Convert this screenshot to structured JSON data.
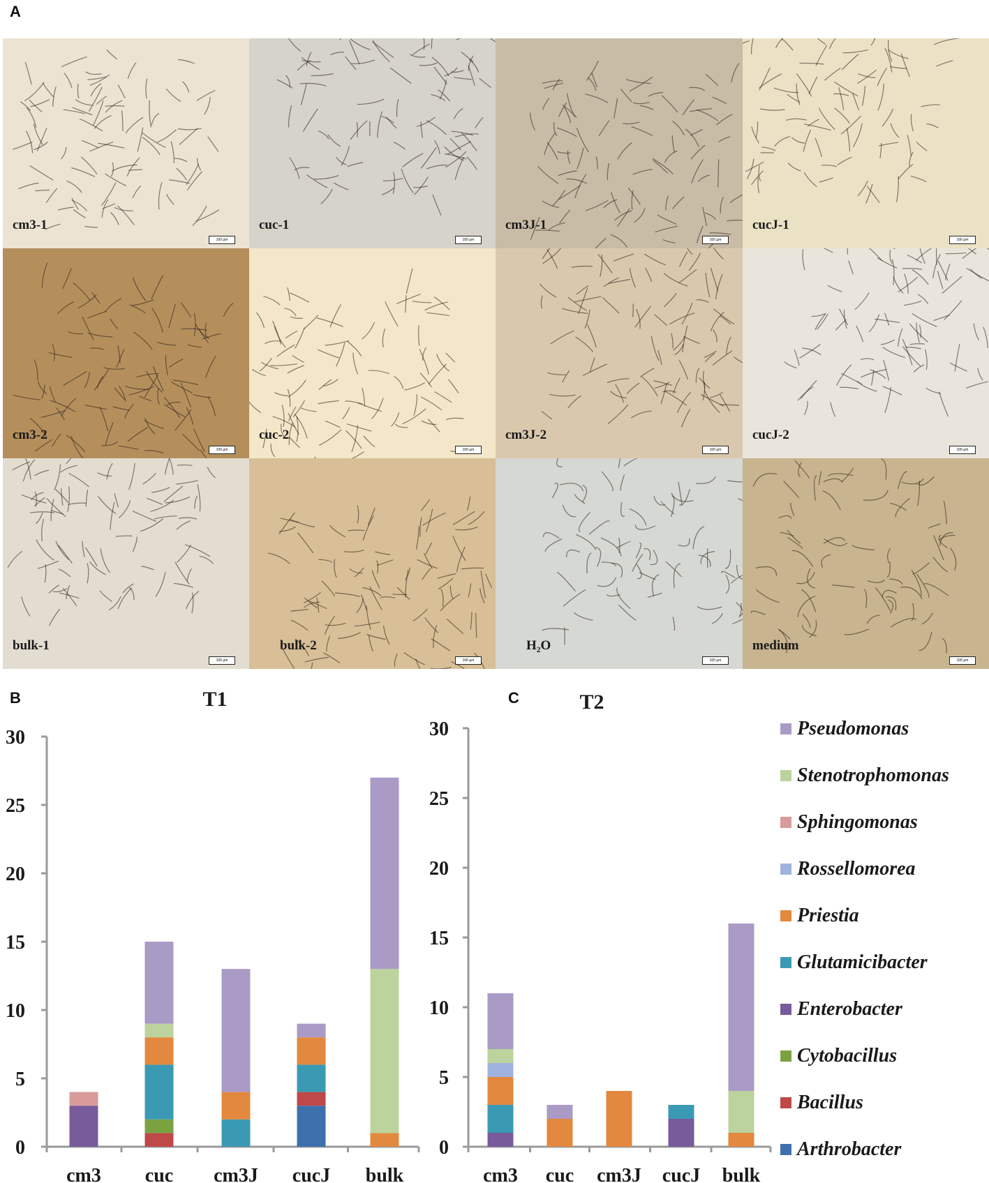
{
  "panels": {
    "a": "A",
    "b": "B",
    "c": "C"
  },
  "micrographs": [
    {
      "label": "cm3-1",
      "bg": "#ece3d2"
    },
    {
      "label": "cuc-1",
      "bg": "#d6d3cb"
    },
    {
      "label": "cm3J-1",
      "bg": "#c9bca6"
    },
    {
      "label": "cucJ-1",
      "bg": "#ebe2c6"
    },
    {
      "label": "cm3-2",
      "bg": "#b48f5c"
    },
    {
      "label": "cuc-2",
      "bg": "#f4e7c9"
    },
    {
      "label": "cm3J-2",
      "bg": "#dac8ad"
    },
    {
      "label": "cucJ-2",
      "bg": "#e9e5dc"
    },
    {
      "label": "bulk-1",
      "bg": "#e2ddd0"
    },
    {
      "label": "bulk-2",
      "bg": "#d8bf97"
    },
    {
      "label": "H₂O",
      "bg": "#d5d8d3"
    },
    {
      "label": "medium",
      "bg": "#c8b48e"
    }
  ],
  "scale_bar_label": "100 µm",
  "colors": {
    "Pseudomonas": "#a99bc6",
    "Stenotrophomonas": "#bcd39d",
    "Sphingomonas": "#d99a9a",
    "Rossellomorea": "#9fb3de",
    "Priestia": "#e3883f",
    "Glutamicibacter": "#3b9ab3",
    "Enterobacter": "#775b9b",
    "Cytobacillus": "#7ba241",
    "Bacillus": "#bf4848",
    "Arthrobacter": "#3d70ad"
  },
  "legend": [
    "Pseudomonas",
    "Stenotrophomonas",
    "Sphingomonas",
    "Rossellomorea",
    "Priestia",
    "Glutamicibacter",
    "Enterobacter",
    "Cytobacillus",
    "Bacillus",
    "Arthrobacter"
  ],
  "chart_data": [
    {
      "type": "bar",
      "stacked": true,
      "title": "T1",
      "categories": [
        "cm3",
        "cuc",
        "cm3J",
        "cucJ",
        "bulk"
      ],
      "yticks": [
        "0",
        "5",
        "10",
        "15",
        "20",
        "25",
        "30"
      ],
      "ylim": [
        0,
        30
      ],
      "series": [
        {
          "name": "Arthrobacter",
          "values": [
            0,
            0,
            0,
            3,
            0
          ]
        },
        {
          "name": "Bacillus",
          "values": [
            0,
            1,
            0,
            1,
            0
          ]
        },
        {
          "name": "Cytobacillus",
          "values": [
            0,
            1,
            0,
            0,
            0
          ]
        },
        {
          "name": "Enterobacter",
          "values": [
            3,
            0,
            0,
            0,
            0
          ]
        },
        {
          "name": "Glutamicibacter",
          "values": [
            0,
            4,
            2,
            2,
            0
          ]
        },
        {
          "name": "Priestia",
          "values": [
            0,
            2,
            2,
            2,
            1
          ]
        },
        {
          "name": "Rossellomorea",
          "values": [
            0,
            0,
            0,
            0,
            0
          ]
        },
        {
          "name": "Sphingomonas",
          "values": [
            1,
            0,
            0,
            0,
            0
          ]
        },
        {
          "name": "Stenotrophomonas",
          "values": [
            0,
            1,
            0,
            0,
            12
          ]
        },
        {
          "name": "Pseudomonas",
          "values": [
            0,
            6,
            9,
            1,
            14
          ]
        }
      ]
    },
    {
      "type": "bar",
      "stacked": true,
      "title": "T2",
      "categories": [
        "cm3",
        "cuc",
        "cm3J",
        "cucJ",
        "bulk"
      ],
      "yticks": [
        "0",
        "5",
        "10",
        "15",
        "20",
        "25",
        "30"
      ],
      "ylim": [
        0,
        30
      ],
      "series": [
        {
          "name": "Arthrobacter",
          "values": [
            0,
            0,
            0,
            0,
            0
          ]
        },
        {
          "name": "Bacillus",
          "values": [
            0,
            0,
            0,
            0,
            0
          ]
        },
        {
          "name": "Cytobacillus",
          "values": [
            0,
            0,
            0,
            0,
            0
          ]
        },
        {
          "name": "Enterobacter",
          "values": [
            1,
            0,
            0,
            2,
            0
          ]
        },
        {
          "name": "Glutamicibacter",
          "values": [
            2,
            0,
            0,
            1,
            0
          ]
        },
        {
          "name": "Priestia",
          "values": [
            2,
            2,
            4,
            0,
            1
          ]
        },
        {
          "name": "Rossellomorea",
          "values": [
            1,
            0,
            0,
            0,
            0
          ]
        },
        {
          "name": "Sphingomonas",
          "values": [
            0,
            0,
            0,
            0,
            0
          ]
        },
        {
          "name": "Stenotrophomonas",
          "values": [
            1,
            0,
            0,
            0,
            3
          ]
        },
        {
          "name": "Pseudomonas",
          "values": [
            4,
            1,
            0,
            0,
            12
          ]
        }
      ]
    }
  ]
}
